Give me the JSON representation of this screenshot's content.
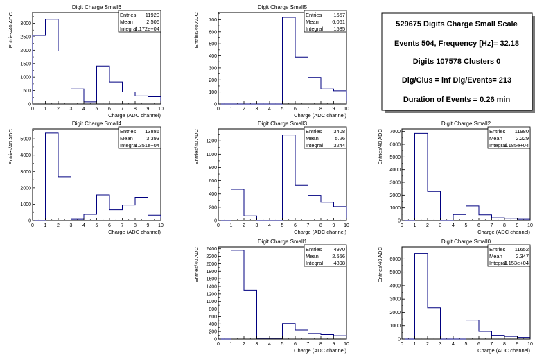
{
  "summary": {
    "lines": [
      "529675 Digits Charge Small Scale",
      "Events 504, Frequency [Hz]= 32.18",
      "Digits 107578 Clusters 0",
      "Dig/Clus = inf Dig/Events= 213",
      "Duration of Events = 0.26 min"
    ]
  },
  "stats_labels": {
    "entries": "Entries",
    "mean": "Mean",
    "integral": "Integral"
  },
  "chart_data": [
    {
      "type": "bar",
      "title": "Digit Charge Small6",
      "xlabel": "Charge (ADC channel)",
      "ylabel": "Entries/40 ADC",
      "xlim": [
        0,
        10
      ],
      "ylim": [
        0,
        3400
      ],
      "xticks": [
        0,
        1,
        2,
        3,
        4,
        5,
        6,
        7,
        8,
        9,
        10
      ],
      "yticks": [
        0,
        500,
        1000,
        1500,
        2000,
        2500,
        3000
      ],
      "bin_edges": [
        0,
        1,
        2,
        3,
        4,
        5,
        6,
        7,
        8,
        9,
        10
      ],
      "values": [
        2550,
        3150,
        1970,
        560,
        80,
        1410,
        820,
        450,
        300,
        270
      ],
      "stats": {
        "entries": "11920",
        "mean": "2.506",
        "integral": "1.172e+04"
      }
    },
    {
      "type": "bar",
      "title": "Digit Charge Small5",
      "xlabel": "Charge (ADC channel)",
      "ylabel": "Entries/40 ADC",
      "xlim": [
        0,
        10
      ],
      "ylim": [
        0,
        760
      ],
      "xticks": [
        0,
        1,
        2,
        3,
        4,
        5,
        6,
        7,
        8,
        9,
        10
      ],
      "yticks": [
        0,
        100,
        200,
        300,
        400,
        500,
        600,
        700
      ],
      "bin_edges": [
        0,
        1,
        2,
        3,
        4,
        5,
        6,
        7,
        8,
        9,
        10
      ],
      "values": [
        0,
        0,
        0,
        0,
        0,
        720,
        390,
        220,
        125,
        110
      ],
      "stats": {
        "entries": "1657",
        "mean": "6.061",
        "integral": "1585"
      }
    },
    {
      "type": "bar",
      "title": "Digit Charge Small4",
      "xlabel": "Charge (ADC channel)",
      "ylabel": "Entries/40 ADC",
      "xlim": [
        0,
        10
      ],
      "ylim": [
        0,
        5600
      ],
      "xticks": [
        0,
        1,
        2,
        3,
        4,
        5,
        6,
        7,
        8,
        9,
        10
      ],
      "yticks": [
        0,
        1000,
        2000,
        3000,
        4000,
        5000
      ],
      "bin_edges": [
        0,
        1,
        2,
        3,
        4,
        5,
        6,
        7,
        8,
        9,
        10
      ],
      "values": [
        0,
        5350,
        2680,
        80,
        380,
        1570,
        650,
        950,
        1420,
        330
      ],
      "stats": {
        "entries": "13886",
        "mean": "3.393",
        "integral": "1.351e+04"
      }
    },
    {
      "type": "bar",
      "title": "Digit Charge Small3",
      "xlabel": "Charge (ADC channel)",
      "ylabel": "Entries/40 ADC",
      "xlim": [
        0,
        10
      ],
      "ylim": [
        0,
        1380
      ],
      "xticks": [
        0,
        1,
        2,
        3,
        4,
        5,
        6,
        7,
        8,
        9,
        10
      ],
      "yticks": [
        0,
        200,
        400,
        600,
        800,
        1000,
        1200
      ],
      "bin_edges": [
        0,
        1,
        2,
        3,
        4,
        5,
        6,
        7,
        8,
        9,
        10
      ],
      "values": [
        0,
        470,
        70,
        0,
        0,
        1290,
        530,
        380,
        275,
        210
      ],
      "stats": {
        "entries": "3408",
        "mean": "5.26",
        "integral": "3244"
      }
    },
    {
      "type": "bar",
      "title": "Digit Charge Small2",
      "xlabel": "Charge (ADC channel)",
      "ylabel": "Entries/40 ADC",
      "xlim": [
        0,
        10
      ],
      "ylim": [
        0,
        7200
      ],
      "xticks": [
        0,
        1,
        2,
        3,
        4,
        5,
        6,
        7,
        8,
        9,
        10
      ],
      "yticks": [
        0,
        1000,
        2000,
        3000,
        4000,
        5000,
        6000,
        7000
      ],
      "bin_edges": [
        0,
        1,
        2,
        3,
        4,
        5,
        6,
        7,
        8,
        9,
        10
      ],
      "values": [
        0,
        6850,
        2280,
        0,
        480,
        1150,
        450,
        210,
        180,
        100
      ],
      "stats": {
        "entries": "11980",
        "mean": "2.229",
        "integral": "1.185e+04"
      }
    },
    {
      "type": "bar",
      "title": "Digit Charge Small1",
      "xlabel": "Charge (ADC channel)",
      "ylabel": "Entries/40 ADC",
      "xlim": [
        0,
        10
      ],
      "ylim": [
        0,
        2450
      ],
      "xticks": [
        0,
        1,
        2,
        3,
        4,
        5,
        6,
        7,
        8,
        9,
        10
      ],
      "yticks": [
        0,
        200,
        400,
        600,
        800,
        1000,
        1200,
        1400,
        1600,
        1800,
        2000,
        2200,
        2400
      ],
      "bin_edges": [
        0,
        1,
        2,
        3,
        4,
        5,
        6,
        7,
        8,
        9,
        10
      ],
      "values": [
        0,
        2360,
        1300,
        20,
        20,
        410,
        240,
        150,
        120,
        90
      ],
      "stats": {
        "entries": "4970",
        "mean": "2.556",
        "integral": "4898"
      }
    },
    {
      "type": "bar",
      "title": "Digit Charge Small0",
      "xlabel": "Charge (ADC channel)",
      "ylabel": "Entries/40 ADC",
      "xlim": [
        0,
        10
      ],
      "ylim": [
        0,
        6900
      ],
      "xticks": [
        0,
        1,
        2,
        3,
        4,
        5,
        6,
        7,
        8,
        9,
        10
      ],
      "yticks": [
        0,
        1000,
        2000,
        3000,
        4000,
        5000,
        6000
      ],
      "bin_edges": [
        0,
        1,
        2,
        3,
        4,
        5,
        6,
        7,
        8,
        9,
        10
      ],
      "values": [
        0,
        6400,
        2350,
        0,
        0,
        1420,
        570,
        280,
        200,
        120
      ],
      "stats": {
        "entries": "11652",
        "mean": "2.347",
        "integral": "1.153e+04"
      }
    }
  ]
}
